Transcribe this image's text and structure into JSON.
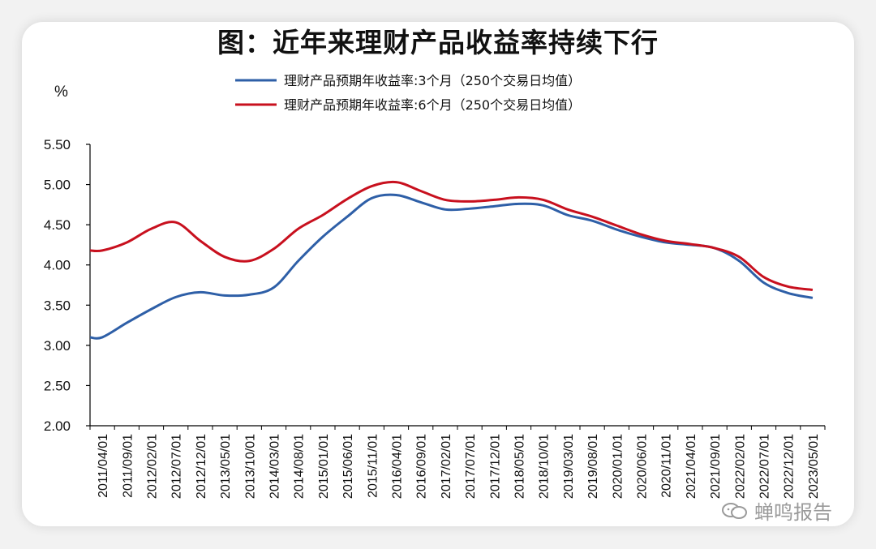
{
  "title": "图：近年来理财产品收益率持续下行",
  "unit_label": "%",
  "watermark": "蝉鸣报告",
  "colors": {
    "series_3m": "#2e5fa7",
    "series_6m": "#c8101e",
    "axis": "#000000",
    "text": "#111111",
    "watermark": "#9a9a9a"
  },
  "chart_data": {
    "type": "line",
    "title": "图：近年来理财产品收益率持续下行",
    "ylabel": "%",
    "ylim": [
      2.0,
      5.5
    ],
    "yticks": [
      "2.00",
      "2.50",
      "3.00",
      "3.50",
      "4.00",
      "4.50",
      "5.00",
      "5.50"
    ],
    "grid": false,
    "legend_position": "top-center",
    "x_categories": [
      "2011/04/01",
      "2011/09/01",
      "2012/02/01",
      "2012/07/01",
      "2012/12/01",
      "2013/05/01",
      "2013/10/01",
      "2014/03/01",
      "2014/08/01",
      "2015/01/01",
      "2015/06/01",
      "2015/11/01",
      "2016/04/01",
      "2016/09/01",
      "2017/02/01",
      "2017/07/01",
      "2017/12/01",
      "2018/05/01",
      "2018/10/01",
      "2019/03/01",
      "2019/08/01",
      "2020/01/01",
      "2020/06/01",
      "2020/11/01",
      "2021/04/01",
      "2021/09/01",
      "2022/02/01",
      "2022/07/01",
      "2022/12/01",
      "2023/05/01"
    ],
    "series": [
      {
        "name": "理财产品预期年收益率:3个月（250个交易日均值）",
        "color": "#2e5fa7",
        "values": [
          3.1,
          3.28,
          3.45,
          3.6,
          3.66,
          3.62,
          3.63,
          3.72,
          4.05,
          4.35,
          4.6,
          4.83,
          4.87,
          4.78,
          4.69,
          4.7,
          4.73,
          4.76,
          4.74,
          4.62,
          4.55,
          4.44,
          4.35,
          4.28,
          4.25,
          4.21,
          4.05,
          3.78,
          3.65,
          3.59
        ]
      },
      {
        "name": "理财产品预期年收益率:6个月（250个交易日均值）",
        "color": "#c8101e",
        "values": [
          4.18,
          4.28,
          4.45,
          4.53,
          4.3,
          4.1,
          4.05,
          4.2,
          4.45,
          4.62,
          4.82,
          4.98,
          5.03,
          4.92,
          4.81,
          4.79,
          4.81,
          4.84,
          4.81,
          4.69,
          4.6,
          4.49,
          4.38,
          4.3,
          4.26,
          4.21,
          4.1,
          3.85,
          3.73,
          3.69
        ]
      }
    ]
  }
}
